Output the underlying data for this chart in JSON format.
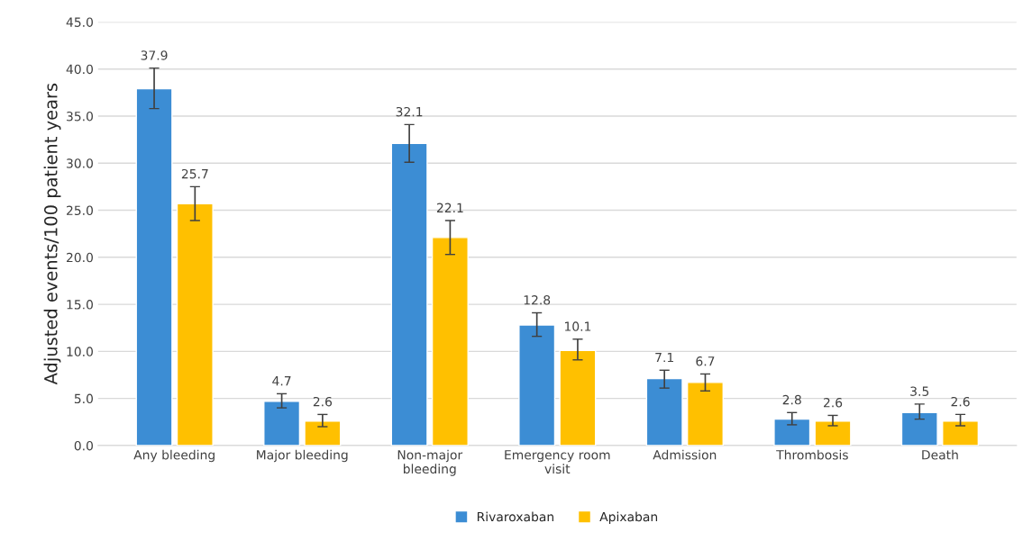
{
  "chart_data": {
    "type": "bar",
    "ylabel": "Adjusted events/100 patient years",
    "categories": [
      "Any bleeding",
      "Major bleeding",
      "Non-major\nbleeding",
      "Emergency room\nvisit",
      "Admission",
      "Thrombosis",
      "Death"
    ],
    "series": [
      {
        "name": "Rivaroxaban",
        "color": "#3c8dd4",
        "values": [
          37.9,
          4.7,
          32.1,
          12.8,
          7.1,
          2.8,
          3.5
        ],
        "errors": [
          [
            35.8,
            40.1
          ],
          [
            4.0,
            5.5
          ],
          [
            30.1,
            34.1
          ],
          [
            11.6,
            14.1
          ],
          [
            6.1,
            8.0
          ],
          [
            2.2,
            3.5
          ],
          [
            2.8,
            4.4
          ]
        ]
      },
      {
        "name": "Apixaban",
        "color": "#ffc000",
        "values": [
          25.7,
          2.6,
          22.1,
          10.1,
          6.7,
          2.6,
          2.6
        ],
        "errors": [
          [
            23.9,
            27.5
          ],
          [
            2.0,
            3.3
          ],
          [
            20.3,
            23.9
          ],
          [
            9.1,
            11.3
          ],
          [
            5.8,
            7.6
          ],
          [
            2.1,
            3.2
          ],
          [
            2.1,
            3.3
          ]
        ]
      }
    ],
    "ylim": [
      0,
      45
    ],
    "yticks": [
      {
        "value": 0,
        "label": "0.0"
      },
      {
        "value": 5,
        "label": "5.0"
      },
      {
        "value": 10,
        "label": "10.0"
      },
      {
        "value": 15,
        "label": "15.0"
      },
      {
        "value": 20,
        "label": "20.0"
      },
      {
        "value": 25,
        "label": "25.0"
      },
      {
        "value": 30,
        "label": "30.0"
      },
      {
        "value": 35,
        "label": "35.0"
      },
      {
        "value": 40,
        "label": "40.0"
      },
      {
        "value": 45,
        "label": "45.0"
      }
    ],
    "grid": "y",
    "legend": "bottom",
    "data_labels": true
  }
}
